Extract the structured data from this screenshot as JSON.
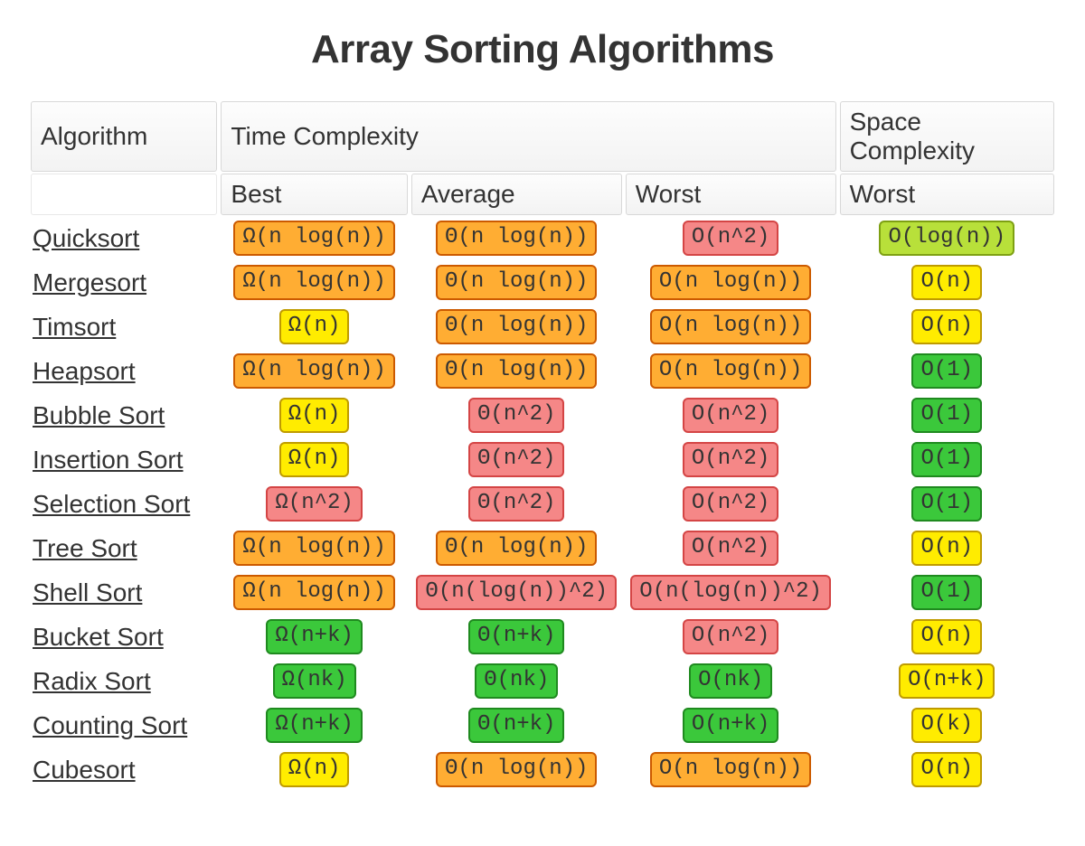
{
  "title": "Array Sorting Algorithms",
  "title_color": "#333333",
  "title_fontsize": 44,
  "background_color": "#ffffff",
  "chip_font": "Courier New, monospace",
  "chip_fontsize": 24,
  "header": {
    "algorithm": "Algorithm",
    "time": "Time Complexity",
    "space": "Space Complexity",
    "sub": {
      "best": "Best",
      "average": "Average",
      "worst": "Worst",
      "space_worst": "Worst"
    },
    "header_bg_top": "#fdfdfd",
    "header_bg_bottom": "#f3f3f3",
    "header_border": "#d8d8d8",
    "header_fontsize": 28
  },
  "palette": {
    "green": {
      "fill": "#3bc83b",
      "border": "#1f8a1f"
    },
    "green_light": {
      "fill": "#b8e03a",
      "border": "#7ea013"
    },
    "yellow": {
      "fill": "#ffec00",
      "border": "#bf9b00"
    },
    "orange": {
      "fill": "#ffad33",
      "border": "#cc5a00"
    },
    "red": {
      "fill": "#f58787",
      "border": "#d44545"
    }
  },
  "link_color": "#333333",
  "algorithm_fontsize": 28,
  "rows": [
    {
      "name": "Quicksort",
      "best": {
        "text": "Ω(n log(n))",
        "color": "orange"
      },
      "average": {
        "text": "Θ(n log(n))",
        "color": "orange"
      },
      "worst": {
        "text": "O(n^2)",
        "color": "red"
      },
      "space": {
        "text": "O(log(n))",
        "color": "green_light"
      }
    },
    {
      "name": "Mergesort",
      "best": {
        "text": "Ω(n log(n))",
        "color": "orange"
      },
      "average": {
        "text": "Θ(n log(n))",
        "color": "orange"
      },
      "worst": {
        "text": "O(n log(n))",
        "color": "orange"
      },
      "space": {
        "text": "O(n)",
        "color": "yellow"
      }
    },
    {
      "name": "Timsort",
      "best": {
        "text": "Ω(n)",
        "color": "yellow"
      },
      "average": {
        "text": "Θ(n log(n))",
        "color": "orange"
      },
      "worst": {
        "text": "O(n log(n))",
        "color": "orange"
      },
      "space": {
        "text": "O(n)",
        "color": "yellow"
      }
    },
    {
      "name": "Heapsort",
      "best": {
        "text": "Ω(n log(n))",
        "color": "orange"
      },
      "average": {
        "text": "Θ(n log(n))",
        "color": "orange"
      },
      "worst": {
        "text": "O(n log(n))",
        "color": "orange"
      },
      "space": {
        "text": "O(1)",
        "color": "green"
      }
    },
    {
      "name": "Bubble Sort",
      "best": {
        "text": "Ω(n)",
        "color": "yellow"
      },
      "average": {
        "text": "Θ(n^2)",
        "color": "red"
      },
      "worst": {
        "text": "O(n^2)",
        "color": "red"
      },
      "space": {
        "text": "O(1)",
        "color": "green"
      }
    },
    {
      "name": "Insertion Sort",
      "best": {
        "text": "Ω(n)",
        "color": "yellow"
      },
      "average": {
        "text": "Θ(n^2)",
        "color": "red"
      },
      "worst": {
        "text": "O(n^2)",
        "color": "red"
      },
      "space": {
        "text": "O(1)",
        "color": "green"
      }
    },
    {
      "name": "Selection Sort",
      "best": {
        "text": "Ω(n^2)",
        "color": "red"
      },
      "average": {
        "text": "Θ(n^2)",
        "color": "red"
      },
      "worst": {
        "text": "O(n^2)",
        "color": "red"
      },
      "space": {
        "text": "O(1)",
        "color": "green"
      }
    },
    {
      "name": "Tree Sort",
      "best": {
        "text": "Ω(n log(n))",
        "color": "orange"
      },
      "average": {
        "text": "Θ(n log(n))",
        "color": "orange"
      },
      "worst": {
        "text": "O(n^2)",
        "color": "red"
      },
      "space": {
        "text": "O(n)",
        "color": "yellow"
      }
    },
    {
      "name": "Shell Sort",
      "best": {
        "text": "Ω(n log(n))",
        "color": "orange"
      },
      "average": {
        "text": "Θ(n(log(n))^2)",
        "color": "red"
      },
      "worst": {
        "text": "O(n(log(n))^2)",
        "color": "red"
      },
      "space": {
        "text": "O(1)",
        "color": "green"
      }
    },
    {
      "name": "Bucket Sort",
      "best": {
        "text": "Ω(n+k)",
        "color": "green"
      },
      "average": {
        "text": "Θ(n+k)",
        "color": "green"
      },
      "worst": {
        "text": "O(n^2)",
        "color": "red"
      },
      "space": {
        "text": "O(n)",
        "color": "yellow"
      }
    },
    {
      "name": "Radix Sort",
      "best": {
        "text": "Ω(nk)",
        "color": "green"
      },
      "average": {
        "text": "Θ(nk)",
        "color": "green"
      },
      "worst": {
        "text": "O(nk)",
        "color": "green"
      },
      "space": {
        "text": "O(n+k)",
        "color": "yellow"
      }
    },
    {
      "name": "Counting Sort",
      "best": {
        "text": "Ω(n+k)",
        "color": "green"
      },
      "average": {
        "text": "Θ(n+k)",
        "color": "green"
      },
      "worst": {
        "text": "O(n+k)",
        "color": "green"
      },
      "space": {
        "text": "O(k)",
        "color": "yellow"
      }
    },
    {
      "name": "Cubesort",
      "best": {
        "text": "Ω(n)",
        "color": "yellow"
      },
      "average": {
        "text": "Θ(n log(n))",
        "color": "orange"
      },
      "worst": {
        "text": "O(n log(n))",
        "color": "orange"
      },
      "space": {
        "text": "O(n)",
        "color": "yellow"
      }
    }
  ]
}
